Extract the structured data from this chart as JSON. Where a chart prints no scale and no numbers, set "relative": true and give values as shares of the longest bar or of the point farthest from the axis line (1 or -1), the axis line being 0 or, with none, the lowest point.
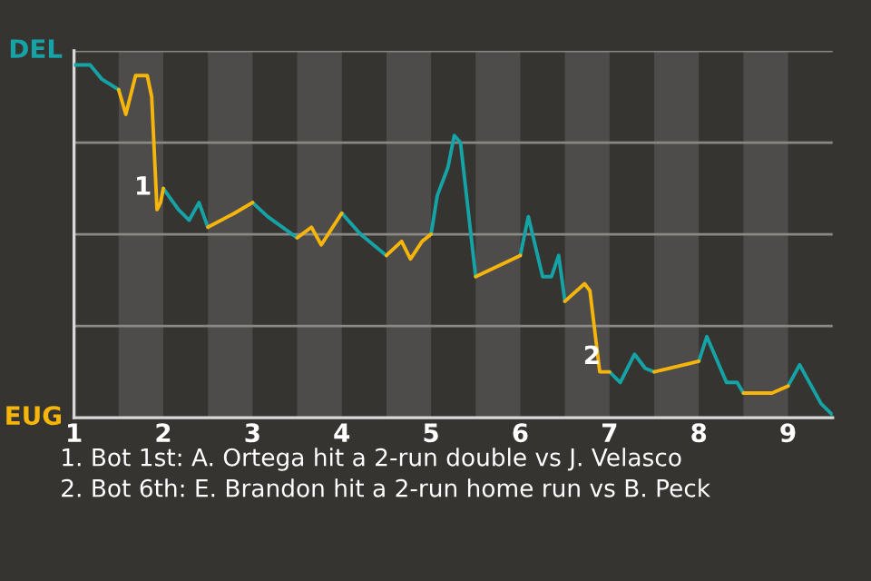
{
  "chart_data": {
    "type": "line",
    "relative": true,
    "xlim": [
      1,
      9.5
    ],
    "xticks": [
      1,
      2,
      3,
      4,
      5,
      6,
      7,
      8,
      9
    ],
    "series": [
      {
        "color": "#15a3a6",
        "x": [
          1.0,
          1.18,
          1.31,
          1.5,
          null,
          2.0,
          2.17,
          2.29,
          2.4,
          2.5,
          null,
          3.0,
          3.17,
          3.5,
          null,
          4.0,
          4.21,
          4.5,
          null,
          5.0,
          5.07,
          5.19,
          5.26,
          5.33,
          5.5,
          null,
          6.0,
          6.09,
          6.25,
          6.35,
          6.43,
          6.5,
          null,
          7.0,
          7.12,
          7.28,
          7.4,
          7.5,
          null,
          8.0,
          8.09,
          8.31,
          8.43,
          8.5,
          null,
          9.0,
          9.13,
          9.37,
          9.49
        ],
        "values": [
          1,
          1,
          0.96,
          0.93,
          null,
          0.65,
          0.59,
          0.56,
          0.61,
          0.54,
          null,
          0.61,
          0.57,
          0.51,
          null,
          0.58,
          0.52,
          0.46,
          null,
          0.52,
          0.63,
          0.71,
          0.8,
          0.78,
          0.4,
          null,
          0.46,
          0.57,
          0.4,
          0.4,
          0.46,
          0.33,
          null,
          0.13,
          0.1,
          0.18,
          0.14,
          0.13,
          null,
          0.16,
          0.23,
          0.1,
          0.1,
          0.07,
          null,
          0.09,
          0.15,
          0.04,
          0.01
        ]
      },
      {
        "color": "#f5b50a",
        "x": [
          1.5,
          1.58,
          1.69,
          1.82,
          1.87,
          1.93,
          1.97,
          2.0,
          null,
          2.5,
          2.8,
          3.0,
          null,
          3.5,
          3.66,
          3.77,
          4.0,
          null,
          4.5,
          4.67,
          4.77,
          4.9,
          5.0,
          null,
          5.5,
          6.0,
          null,
          6.5,
          6.72,
          6.78,
          6.89,
          7.0,
          null,
          7.5,
          8.0,
          null,
          8.5,
          8.82,
          9.0
        ],
        "values": [
          0.93,
          0.86,
          0.97,
          0.97,
          0.91,
          0.59,
          0.61,
          0.65,
          null,
          0.54,
          0.58,
          0.61,
          null,
          0.51,
          0.54,
          0.49,
          0.58,
          null,
          0.46,
          0.5,
          0.45,
          0.5,
          0.52,
          null,
          0.4,
          0.46,
          null,
          0.33,
          0.38,
          0.36,
          0.13,
          0.13,
          null,
          0.13,
          0.16,
          null,
          0.07,
          0.07,
          0.09
        ]
      }
    ],
    "bands": [
      {
        "axis": "x",
        "from": 1.5,
        "to": 2.0
      },
      {
        "axis": "x",
        "from": 2.5,
        "to": 3.0
      },
      {
        "axis": "x",
        "from": 3.5,
        "to": 4.0
      },
      {
        "axis": "x",
        "from": 4.5,
        "to": 5.0
      },
      {
        "axis": "x",
        "from": 5.5,
        "to": 6.0
      },
      {
        "axis": "x",
        "from": 6.5,
        "to": 7.0
      },
      {
        "axis": "x",
        "from": 7.5,
        "to": 8.0
      },
      {
        "axis": "x",
        "from": 8.5,
        "to": 9.0
      }
    ],
    "annotations": [
      "DEL",
      "EUG",
      {
        "text": "1",
        "x": 1.97,
        "y": 0.61
      },
      {
        "text": "2",
        "x": 7.0,
        "y": 0.13
      },
      "1. Bot 1st: A. Ortega hit a 2-run double vs J. Velasco",
      "2. Bot 6th: E. Brandon hit a 2-run home run vs B. Peck"
    ]
  }
}
